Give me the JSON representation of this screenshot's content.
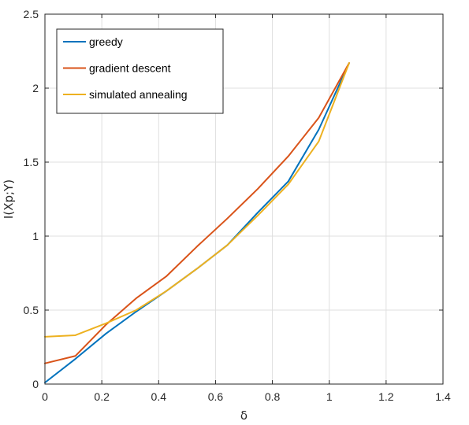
{
  "chart_data": {
    "type": "line",
    "title": "",
    "xlabel": "δ",
    "ylabel": "I(Xp;Y)",
    "xlim": [
      0,
      1.4
    ],
    "ylim": [
      0,
      2.5
    ],
    "xticks": [
      0,
      0.2,
      0.4,
      0.6,
      0.8,
      1,
      1.2,
      1.4
    ],
    "xtick_labels": [
      "0",
      "0.2",
      "0.4",
      "0.6",
      "0.8",
      "1",
      "1.2",
      "1.4"
    ],
    "yticks": [
      0,
      0.5,
      1,
      1.5,
      2,
      2.5
    ],
    "ytick_labels": [
      "0",
      "0.5",
      "1",
      "1.5",
      "2",
      "2.5"
    ],
    "grid": true,
    "legend_position": "top-left",
    "series": [
      {
        "name": "greedy",
        "color": "#0072BD",
        "x": [
          0,
          0.107,
          0.214,
          0.321,
          0.428,
          0.535,
          0.642,
          0.749,
          0.856,
          0.963,
          1.07
        ],
        "y": [
          0.01,
          0.17,
          0.34,
          0.49,
          0.63,
          0.78,
          0.94,
          1.16,
          1.37,
          1.72,
          2.17
        ]
      },
      {
        "name": "gradient descent",
        "color": "#D95319",
        "x": [
          0,
          0.107,
          0.214,
          0.321,
          0.428,
          0.535,
          0.642,
          0.749,
          0.856,
          0.963,
          1.07
        ],
        "y": [
          0.14,
          0.19,
          0.4,
          0.58,
          0.73,
          0.93,
          1.12,
          1.32,
          1.54,
          1.8,
          2.17
        ]
      },
      {
        "name": "simulated annealing",
        "color": "#EDB120",
        "x": [
          0,
          0.107,
          0.214,
          0.321,
          0.428,
          0.535,
          0.642,
          0.749,
          0.856,
          0.963,
          1.07
        ],
        "y": [
          0.32,
          0.33,
          0.41,
          0.5,
          0.63,
          0.78,
          0.94,
          1.14,
          1.35,
          1.64,
          2.17
        ]
      }
    ]
  }
}
